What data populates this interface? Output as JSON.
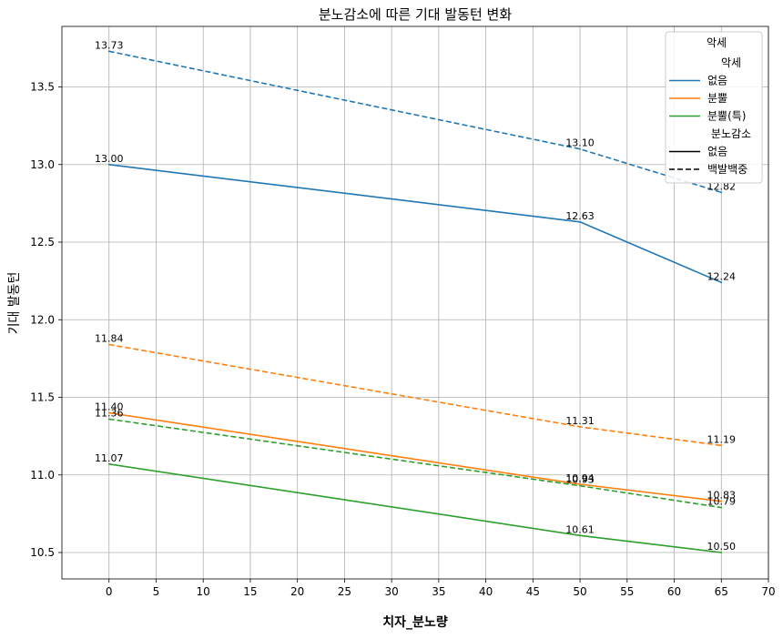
{
  "chart_data": {
    "type": "line",
    "title": "분노감소에 따른 기대 발동턴 변화",
    "xlabel": "치자_분노량",
    "ylabel": "기대 발동턴",
    "xlim": [
      -5,
      70
    ],
    "ylim": [
      10.33,
      13.89
    ],
    "xticks": [
      0,
      5,
      10,
      15,
      20,
      25,
      30,
      35,
      40,
      45,
      50,
      55,
      60,
      65,
      70
    ],
    "yticks": [
      10.5,
      11.0,
      11.5,
      12.0,
      12.5,
      13.0,
      13.5
    ],
    "ytick_labels": [
      "10.5",
      "11.0",
      "11.5",
      "12.0",
      "12.5",
      "13.0",
      "13.5"
    ],
    "grid": true,
    "legend_position": "top-right",
    "x": [
      0,
      50,
      65
    ],
    "series": [
      {
        "name": "없음 / 없음",
        "color": "#1f77b4",
        "dash": "solid",
        "values": [
          13.0,
          12.63,
          12.24
        ],
        "labels": [
          "13.00",
          "12.63",
          "12.24"
        ]
      },
      {
        "name": "없음 / 백발백중",
        "color": "#1f77b4",
        "dash": "dashed",
        "values": [
          13.73,
          13.1,
          12.82
        ],
        "labels": [
          "13.73",
          "13.10",
          "12.82"
        ]
      },
      {
        "name": "분뿔 / 없음",
        "color": "#ff7f0e",
        "dash": "solid",
        "values": [
          11.4,
          10.94,
          10.83
        ],
        "labels": [
          "11.40",
          "10.94",
          "10.83"
        ]
      },
      {
        "name": "분뿔 / 백발백중",
        "color": "#ff7f0e",
        "dash": "dashed",
        "values": [
          11.84,
          11.31,
          11.19
        ],
        "labels": [
          "11.84",
          "11.31",
          "11.19"
        ]
      },
      {
        "name": "분뿔(특) / 없음",
        "color": "#2ca02c",
        "dash": "solid",
        "values": [
          11.07,
          10.61,
          10.5
        ],
        "labels": [
          "11.07",
          "10.61",
          "10.50"
        ]
      },
      {
        "name": "분뿔(특) / 백발백중",
        "color": "#2ca02c",
        "dash": "dashed",
        "values": [
          11.36,
          10.93,
          10.79
        ],
        "labels": [
          "11.36",
          "10.93",
          "10.79"
        ]
      }
    ],
    "legend": {
      "title": "악세",
      "entries": [
        {
          "label": "악세",
          "kind": "header"
        },
        {
          "label": "없음",
          "kind": "line",
          "color": "#1f77b4",
          "dash": "solid"
        },
        {
          "label": "분뿔",
          "kind": "line",
          "color": "#ff7f0e",
          "dash": "solid"
        },
        {
          "label": "분뿔(특)",
          "kind": "line",
          "color": "#2ca02c",
          "dash": "solid"
        },
        {
          "label": "분노감소",
          "kind": "header"
        },
        {
          "label": "없음",
          "kind": "line",
          "color": "#000000",
          "dash": "solid"
        },
        {
          "label": "백발백중",
          "kind": "line",
          "color": "#000000",
          "dash": "dashed"
        }
      ]
    }
  }
}
